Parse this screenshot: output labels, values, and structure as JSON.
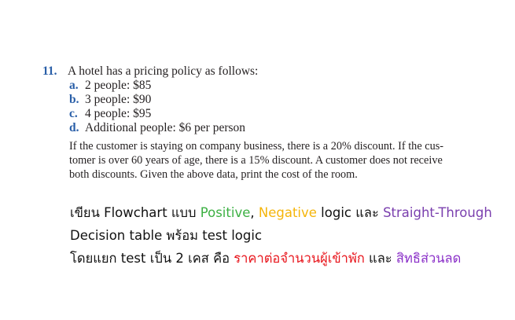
{
  "problem": {
    "number": "11.",
    "intro": "A hotel has a pricing policy as follows:",
    "options": [
      {
        "letter": "a.",
        "text": "2 people: $85"
      },
      {
        "letter": "b.",
        "text": "3 people: $90"
      },
      {
        "letter": "c.",
        "text": "4 people: $95"
      },
      {
        "letter": "d.",
        "text": "Additional people: $6 per person"
      }
    ],
    "paragraph_lines": [
      "If the customer is staying on company business, there is a 20% discount. If the cus-",
      "tomer is over 60 years of age, there is a 15% discount. A customer does not receive",
      "both discounts. Given the above data, print the cost of the room."
    ]
  },
  "instructions": {
    "line1": {
      "prefix": "เขียน Flowchart แบบ ",
      "positive": "Positive",
      "sep1": ", ",
      "negative": "Negative",
      "mid": " logic และ ",
      "straight": "Straight-Through"
    },
    "line2": "Decision table พร้อม test logic",
    "line3": {
      "prefix": "โดยแยก test เป็น 2 เคส คือ ",
      "case1": "ราคาต่อจำนวนผู้เข้าพัก",
      "mid": " และ ",
      "case2": "สิทธิส่วนลด"
    }
  },
  "colors": {
    "heading_blue": "#2a5fa8",
    "positive": "#3cb043",
    "negative": "#f5b50a",
    "straight_through": "#7a3fae",
    "case1": "#e8141b",
    "case2": "#8a2fc8"
  }
}
